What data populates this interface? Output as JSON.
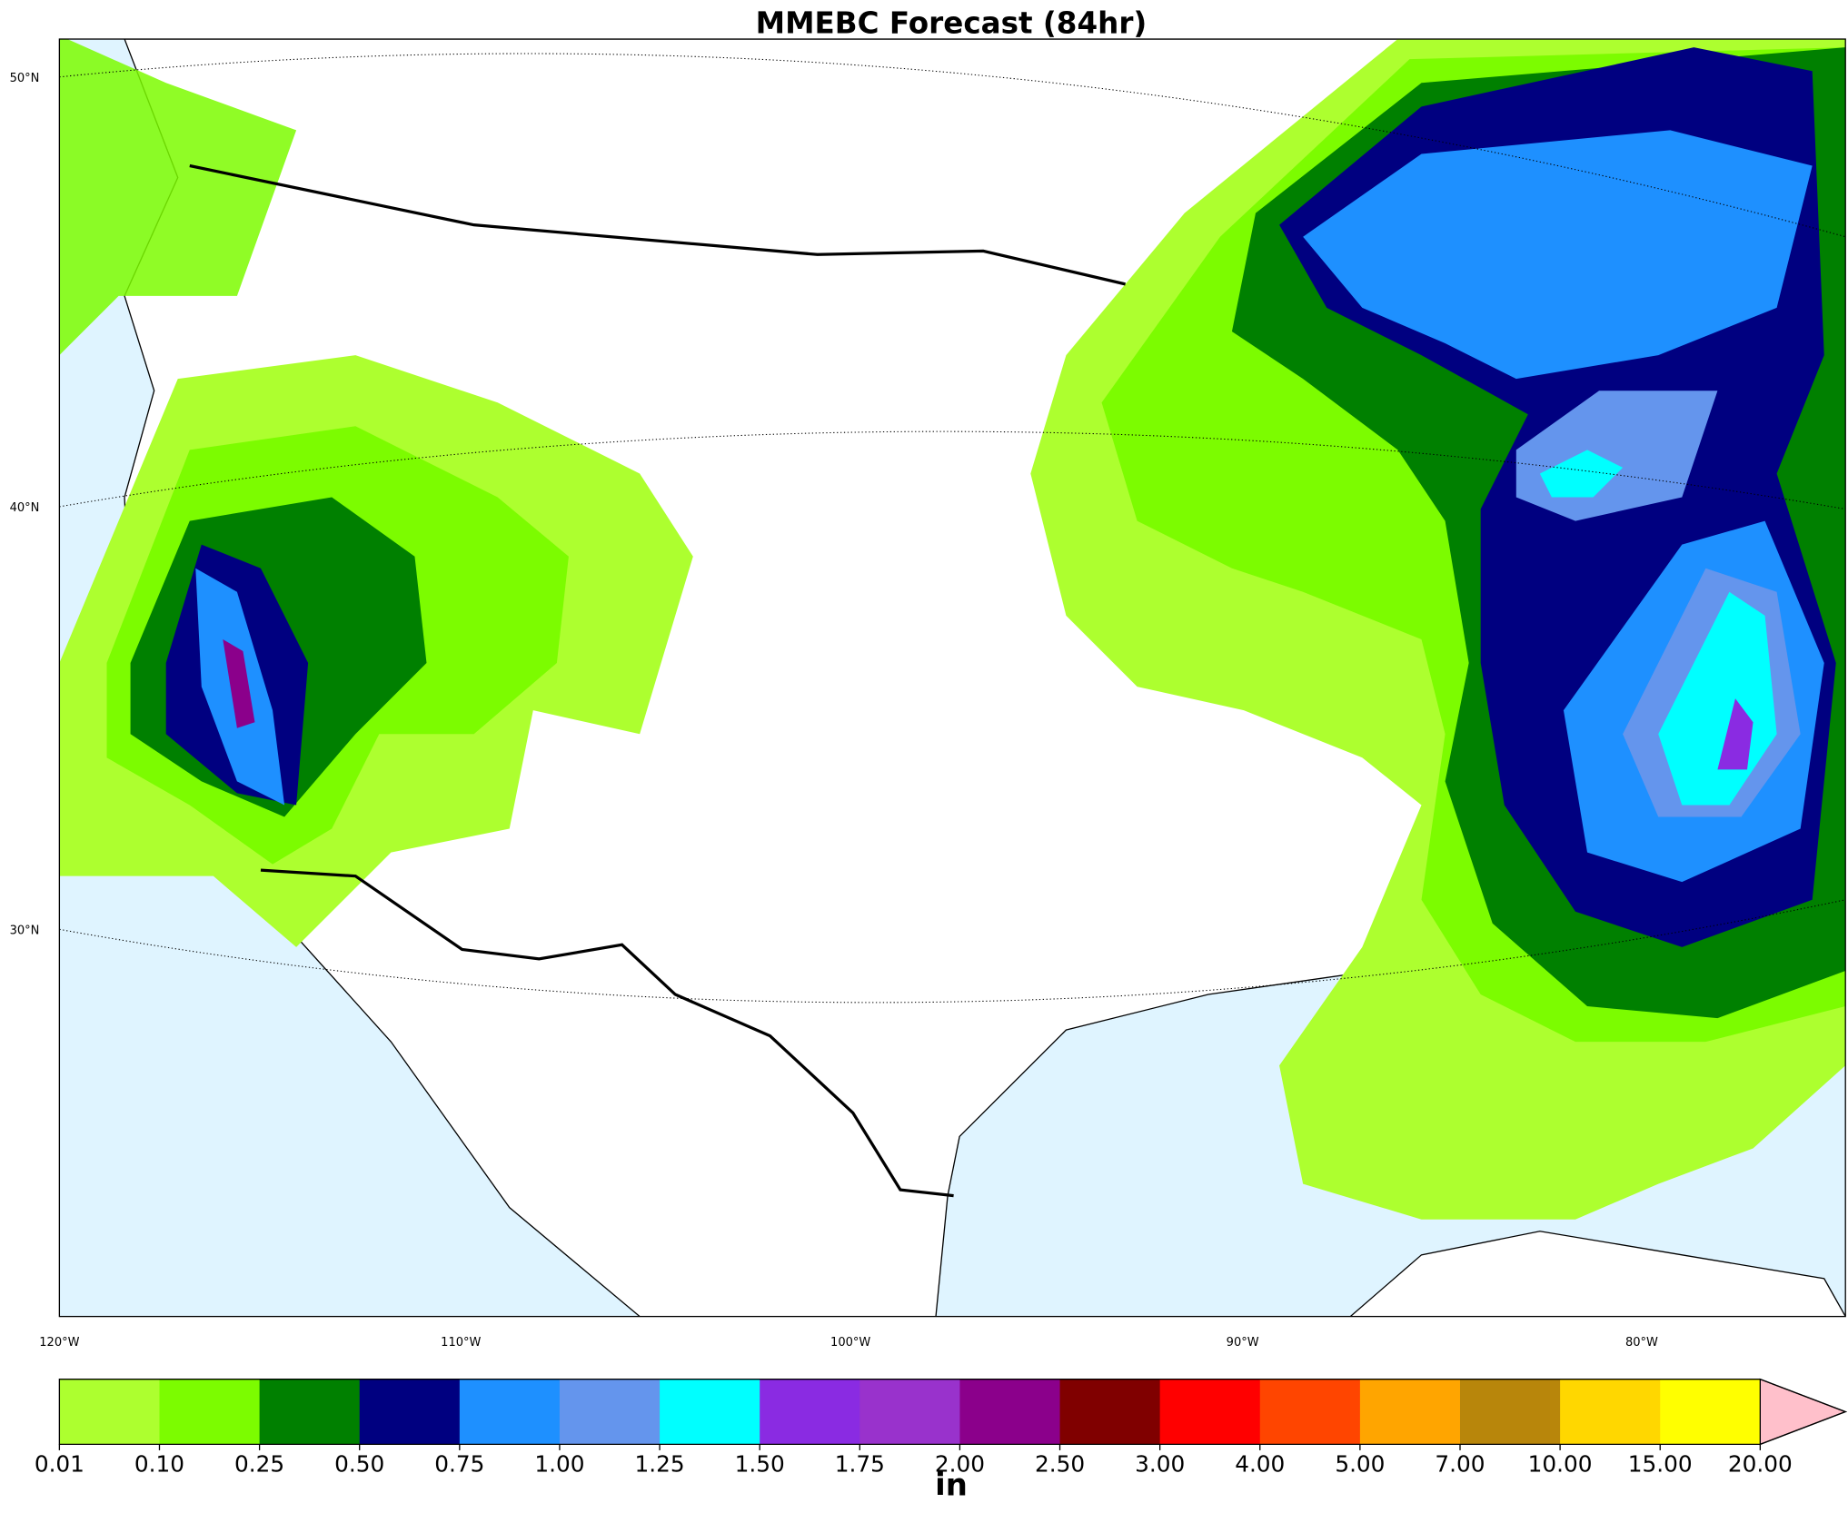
{
  "title": "MMEBC Forecast (84hr)",
  "latitude_labels": [
    "50°N",
    "40°N",
    "30°N"
  ],
  "longitude_labels": [
    "120°W",
    "110°W",
    "100°W",
    "90°W",
    "80°W"
  ],
  "colorbar": {
    "label": "in",
    "ticks": [
      "0.01",
      "0.10",
      "0.25",
      "0.50",
      "0.75",
      "1.00",
      "1.25",
      "1.50",
      "1.75",
      "2.00",
      "2.50",
      "3.00",
      "4.00",
      "5.00",
      "7.00",
      "10.00",
      "15.00",
      "20.00"
    ],
    "colors": [
      "#adff2f",
      "#7cfc00",
      "#008000",
      "#000080",
      "#1e90ff",
      "#6495ed",
      "#00ffff",
      "#8a2be2",
      "#9932cc",
      "#8b008b",
      "#800000",
      "#ff0000",
      "#ff4500",
      "#ffa500",
      "#b8860b",
      "#ffd700",
      "#ffff00"
    ],
    "extend_color": "#ffc0cb"
  }
}
